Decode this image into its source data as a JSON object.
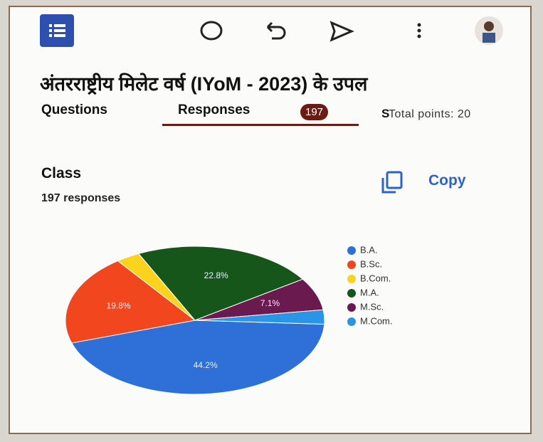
{
  "header": {
    "title": "अंतरराष्ट्रीय मिलेट वर्ष (IYoM - 2023) के उपल"
  },
  "tabs": {
    "questions": "Questions",
    "responses": "Responses",
    "responses_count": "197",
    "settings": "S",
    "total_points": "Total points: 20"
  },
  "question": {
    "title": "Class",
    "responses": "197 responses",
    "copy": "Copy"
  },
  "chart_data": {
    "type": "pie",
    "categories": [
      "B.A.",
      "B.Sc.",
      "B.Com.",
      "M.A.",
      "M.Sc.",
      "M.Com."
    ],
    "values": [
      44.2,
      19.8,
      3.0,
      22.8,
      7.1,
      3.1
    ],
    "value_labels": [
      "44.2%",
      "19.8%",
      null,
      "22.8%",
      "7.1%",
      null
    ],
    "colors": [
      "#2e6fd8",
      "#f2461f",
      "#fbd21c",
      "#17561b",
      "#6b1a4f",
      "#2a94e6"
    ],
    "legend": "right"
  }
}
